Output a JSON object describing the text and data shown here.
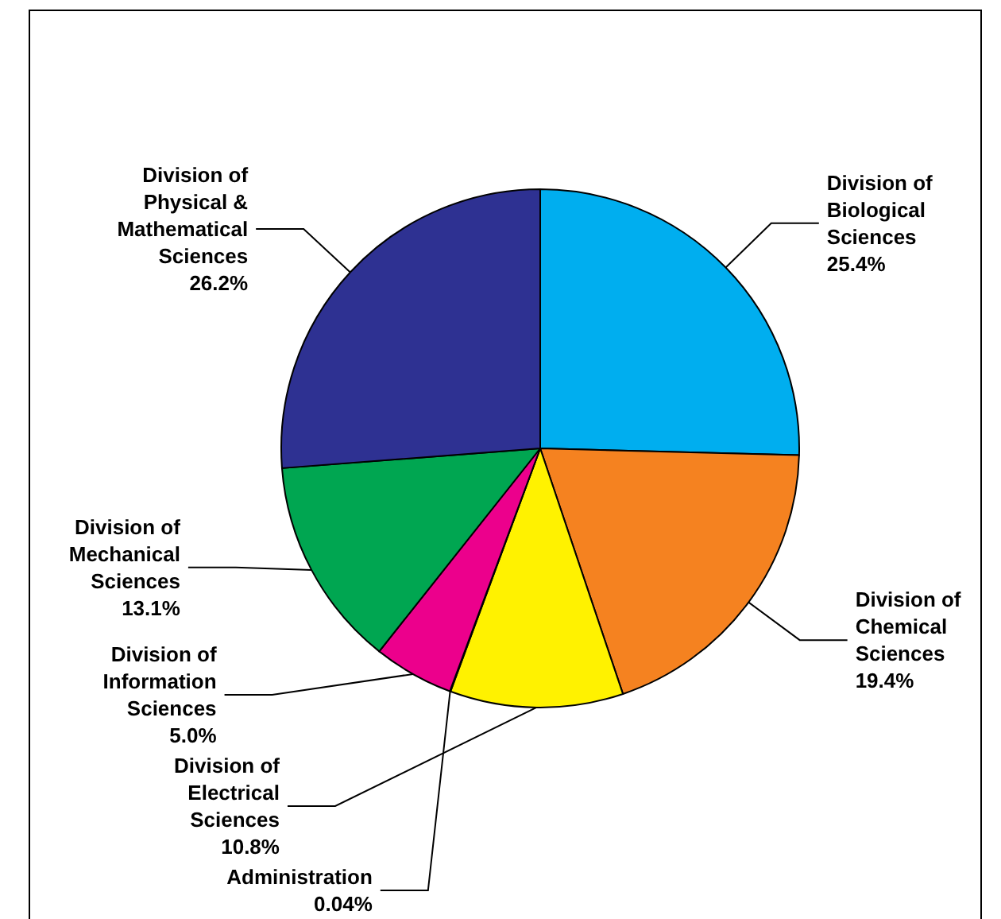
{
  "chart_data": {
    "type": "pie",
    "categories": [
      "Division of\nBiological\nSciences",
      "Division of\nChemical\nSciences",
      "Division of\nElectrical\nSciences",
      "Administration",
      "Division of\nInformation\nSciences",
      "Division of\nMechanical\nSciences",
      "Division of\nPhysical &\nMathematical\nSciences"
    ],
    "values": [
      25.4,
      19.4,
      10.8,
      0.04,
      5.0,
      13.1,
      26.2
    ],
    "value_labels": [
      "25.4%",
      "19.4%",
      "10.8%",
      "0.04%",
      "5.0%",
      "13.1%",
      "26.2%"
    ],
    "colors": [
      "#00aeef",
      "#f58220",
      "#fff200",
      "#ed1c24",
      "#ec008c",
      "#00a651",
      "#2e3192"
    ],
    "legend": false
  }
}
